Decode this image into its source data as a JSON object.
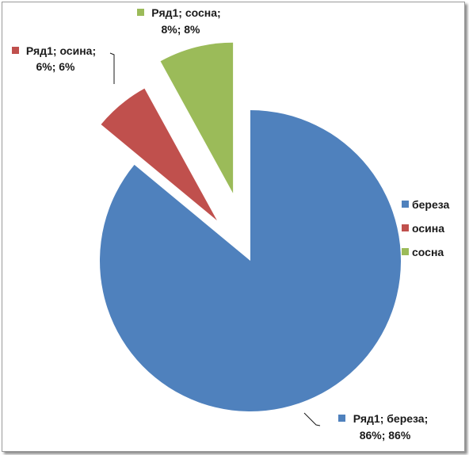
{
  "chart_data": {
    "type": "pie",
    "exploded": true,
    "categories": [
      "береза",
      "осина",
      "сосна"
    ],
    "series": [
      {
        "name": "Ряд1",
        "values": [
          86,
          6,
          8
        ]
      }
    ],
    "colors": [
      "#4f81bd",
      "#c0504d",
      "#9bbb59"
    ],
    "data_labels": [
      [
        "Ряд1; береза;",
        "86%; 86%"
      ],
      [
        "Ряд1; осина;",
        "6%; 6%"
      ],
      [
        "Ряд1; сосна;",
        "8%; 8%"
      ]
    ],
    "legend": {
      "position": "right",
      "entries": [
        "береза",
        "осина",
        "сосна"
      ]
    }
  }
}
